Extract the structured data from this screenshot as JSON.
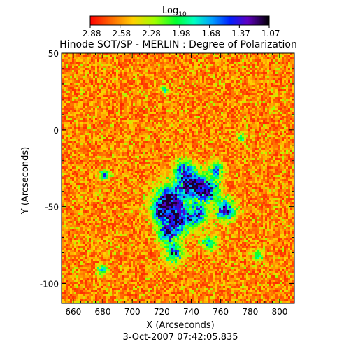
{
  "colorbar": {
    "label_base": "Log",
    "label_sub": "10",
    "ticks": [
      "-2.88",
      "-2.58",
      "-2.28",
      "-1.98",
      "-1.68",
      "-1.37",
      "-1.07"
    ],
    "range": [
      -2.88,
      -1.07
    ]
  },
  "title": "Hinode SOT/SP - MERLIN : Degree of Polarization",
  "x_axis": {
    "label": "X (Arcseconds)",
    "range": [
      652,
      810
    ],
    "ticks": [
      "660",
      "680",
      "700",
      "720",
      "740",
      "760",
      "780",
      "800"
    ]
  },
  "y_axis": {
    "label": "Y (Arcseconds)",
    "range": [
      -113,
      50
    ],
    "ticks": [
      "50",
      "0",
      "-50",
      "-100"
    ]
  },
  "timestamp": "3-Oct-2007 07:42:05.835"
}
